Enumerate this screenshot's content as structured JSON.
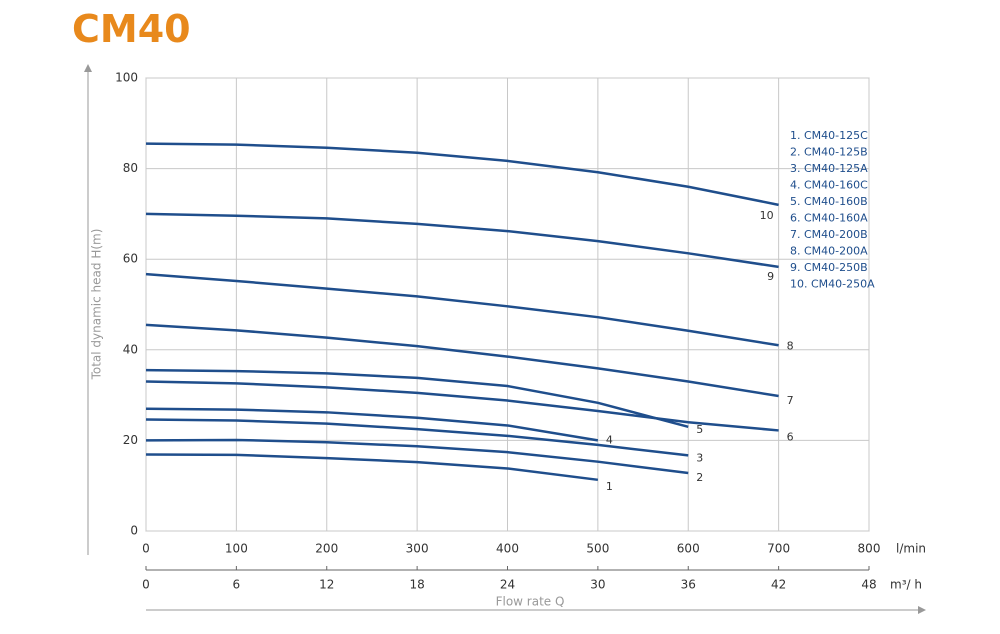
{
  "chart_data": {
    "type": "line",
    "title": "CM40",
    "y_label": "Total dynamic head H(m)",
    "x_label": "Flow rate Q",
    "x_unit": "l/min",
    "x2_unit": "m³/ h",
    "x": [
      0,
      100,
      200,
      300,
      400,
      500,
      600,
      700
    ],
    "xlim": [
      0,
      800
    ],
    "xticks": [
      0,
      100,
      200,
      300,
      400,
      500,
      600,
      700,
      800
    ],
    "x2lim": [
      0,
      48
    ],
    "x2ticks": [
      0,
      6,
      12,
      18,
      24,
      30,
      36,
      42,
      48
    ],
    "ylim": [
      0,
      100
    ],
    "yticks": [
      0,
      20,
      40,
      60,
      80,
      100
    ],
    "grid": true,
    "line_color": "#1f4e8c",
    "series": [
      {
        "name": "1. CM40-125C",
        "label": "1",
        "values": [
          16.9,
          16.8,
          16.1,
          15.2,
          13.8,
          11.3,
          null,
          null
        ]
      },
      {
        "name": "2. CM40-125B",
        "label": "2",
        "values": [
          20,
          20.1,
          19.6,
          18.7,
          17.4,
          15.3,
          12.8,
          null
        ]
      },
      {
        "name": "3. CM40-125A",
        "label": "3",
        "values": [
          24.6,
          24.4,
          23.7,
          22.5,
          21,
          19,
          16.7,
          null
        ]
      },
      {
        "name": "4. CM40-160C",
        "label": "4",
        "values": [
          27,
          26.8,
          26.2,
          25,
          23.3,
          20,
          null,
          null
        ]
      },
      {
        "name": "5. CM40-160B",
        "label": "5",
        "values": [
          35.5,
          35.3,
          34.8,
          33.8,
          32,
          28.3,
          23,
          null
        ]
      },
      {
        "name": "6. CM40-160A",
        "label": "6",
        "values": [
          33,
          32.6,
          31.7,
          30.5,
          28.8,
          26.5,
          24,
          22.2
        ]
      },
      {
        "name": "7. CM40-200B",
        "label": "7",
        "values": [
          45.5,
          44.3,
          42.7,
          40.8,
          38.5,
          35.9,
          33,
          29.8
        ]
      },
      {
        "name": "8. CM40-200A",
        "label": "8",
        "values": [
          56.7,
          55.2,
          53.5,
          51.8,
          49.6,
          47.2,
          44.2,
          41
        ]
      },
      {
        "name": "9. CM40-250B",
        "label": "9",
        "values": [
          70,
          69.6,
          69,
          67.8,
          66.2,
          64,
          61.3,
          58.3
        ]
      },
      {
        "name": "10. CM40-250A",
        "label": "10",
        "values": [
          85.5,
          85.3,
          84.6,
          83.5,
          81.7,
          79.2,
          76,
          72
        ]
      }
    ]
  }
}
